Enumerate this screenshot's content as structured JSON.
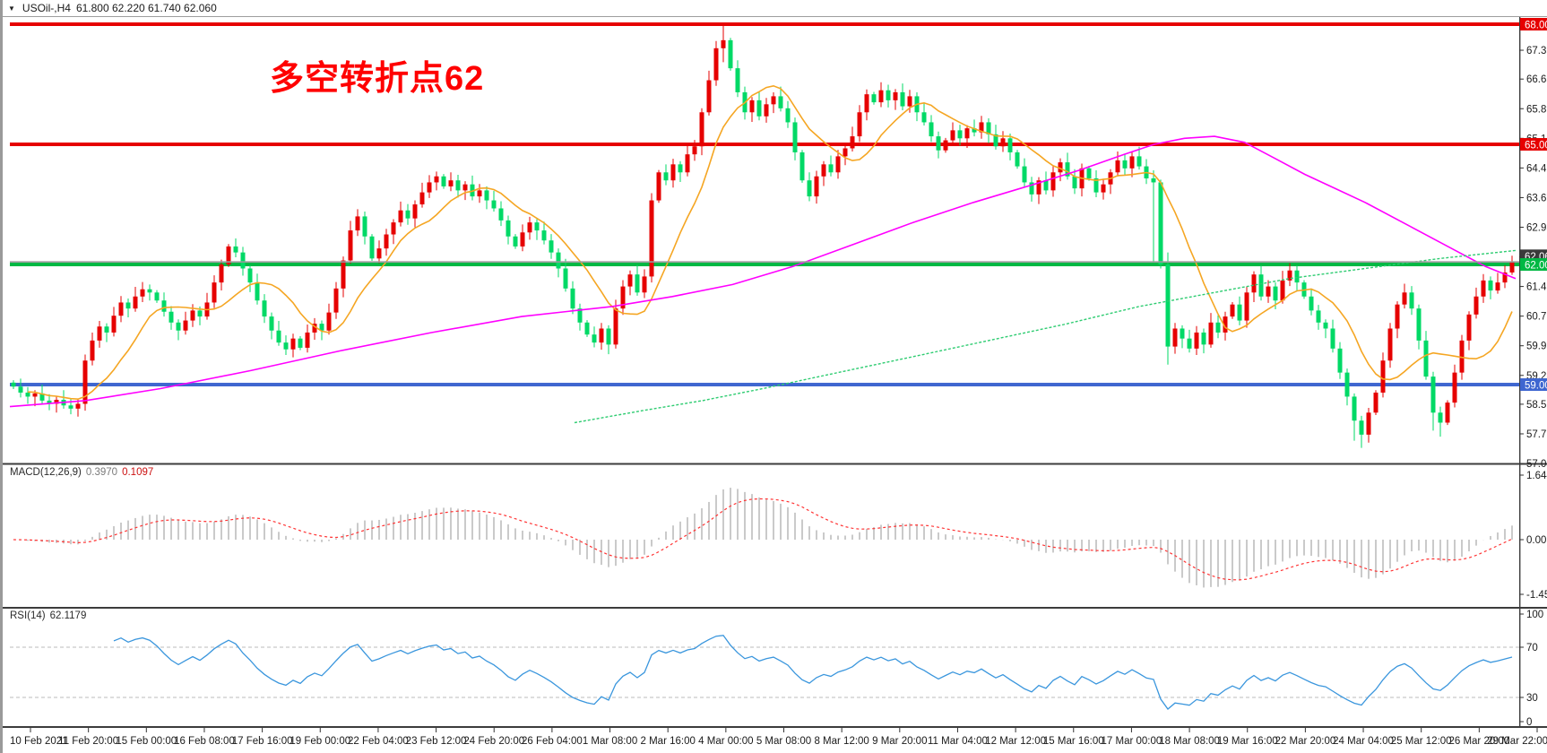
{
  "window": {
    "dropdown_icon": "triangle-down-icon",
    "symbol_title": "USOil-,H4",
    "ohlc_text": "61.800 62.220 61.740 62.060"
  },
  "annotation": {
    "text": "多空转折点62",
    "color": "#ff0000"
  },
  "macd_panel": {
    "name": "MACD(12,26,9)",
    "value_main": "0.3970",
    "value_signal": "0.1097"
  },
  "rsi_panel": {
    "name": "RSI(14)",
    "value": "62.1179"
  },
  "colors": {
    "candle_up": "#e60000",
    "candle_down": "#00d966",
    "hline_red": "#e60000",
    "hline_green": "#00b843",
    "hline_blue": "#3e66d0",
    "current_price_line": "#9a9a9a",
    "current_price_box": "#3a3a3a",
    "ma_fast": "#f5a623",
    "ma_mid": "#ff00ff",
    "ma_slow": "#2ecc71",
    "macd_hist": "#bdbdbd",
    "macd_signal": "#ff3333",
    "rsi_line": "#3a96dd",
    "rsi_levels": "#bbbbbb",
    "axis_text": "#1a1a1a",
    "panel_border": "#3c3c3c"
  },
  "chart_data": {
    "type": "candlestick",
    "symbol": "USOil",
    "timeframe": "H4",
    "title": "USOil-,H4 61.800 62.220 61.740 62.060",
    "current_bar_ohlc": {
      "open": 61.8,
      "high": 62.22,
      "low": 61.74,
      "close": 62.06
    },
    "price_axis": {
      "min": 57.03,
      "max": 68.16,
      "tick_labels": [
        "67.350",
        "66.630",
        "65.890",
        "65.150",
        "64.410",
        "63.670",
        "62.930",
        "62.190",
        "61.450",
        "60.710",
        "59.970",
        "59.230",
        "58.510",
        "57.770",
        "57.030"
      ]
    },
    "horizontal_lines": [
      {
        "price": 68.0,
        "label": "68.000",
        "color": "#e60000"
      },
      {
        "price": 65.0,
        "label": "65.000",
        "color": "#e60000"
      },
      {
        "price": 62.0,
        "label": "62.000",
        "color": "#00b843"
      },
      {
        "price": 59.0,
        "label": "59.000",
        "color": "#3e66d0"
      }
    ],
    "current_price": {
      "value": 62.06,
      "label": "62.060"
    },
    "closes": [
      58.95,
      58.8,
      58.7,
      58.78,
      58.6,
      58.52,
      58.62,
      58.48,
      58.4,
      58.52,
      59.6,
      60.1,
      60.45,
      60.3,
      60.72,
      61.05,
      60.9,
      61.2,
      61.38,
      61.3,
      61.1,
      60.82,
      60.55,
      60.35,
      60.6,
      60.85,
      60.7,
      61.05,
      61.55,
      62.0,
      62.45,
      62.3,
      61.9,
      61.55,
      61.1,
      60.7,
      60.35,
      60.05,
      59.88,
      60.15,
      59.92,
      60.3,
      60.52,
      60.35,
      60.8,
      61.4,
      62.1,
      62.85,
      63.2,
      62.7,
      62.15,
      62.4,
      62.75,
      63.05,
      63.35,
      63.15,
      63.5,
      63.8,
      64.05,
      64.2,
      63.95,
      64.1,
      63.85,
      64.0,
      63.7,
      63.85,
      63.6,
      63.4,
      63.1,
      62.7,
      62.45,
      62.8,
      63.05,
      62.85,
      62.6,
      62.3,
      61.9,
      61.4,
      60.9,
      60.55,
      60.25,
      60.05,
      60.4,
      60.0,
      60.9,
      61.45,
      61.75,
      61.3,
      61.7,
      63.6,
      64.3,
      64.1,
      64.5,
      64.3,
      64.75,
      64.95,
      65.8,
      66.6,
      67.4,
      67.6,
      66.9,
      66.3,
      65.8,
      66.1,
      65.7,
      66.0,
      66.2,
      65.9,
      65.55,
      64.8,
      64.1,
      63.7,
      64.2,
      64.5,
      64.3,
      64.7,
      64.9,
      65.2,
      65.8,
      66.25,
      66.05,
      66.35,
      66.1,
      66.3,
      65.95,
      66.2,
      65.8,
      65.55,
      65.2,
      64.85,
      65.1,
      65.35,
      65.15,
      65.4,
      65.3,
      65.55,
      65.25,
      64.95,
      65.15,
      64.8,
      64.45,
      64.05,
      63.75,
      64.1,
      63.85,
      64.3,
      64.55,
      64.2,
      63.9,
      64.4,
      64.15,
      63.8,
      64.0,
      64.3,
      64.6,
      64.4,
      64.7,
      64.45,
      64.15,
      64.05,
      62.0,
      59.95,
      60.4,
      60.15,
      59.9,
      60.3,
      60.0,
      60.55,
      60.3,
      60.7,
      61.0,
      60.6,
      61.3,
      61.75,
      61.2,
      61.45,
      61.1,
      61.6,
      61.85,
      61.55,
      61.2,
      60.85,
      60.55,
      60.4,
      59.9,
      59.3,
      58.7,
      58.1,
      57.75,
      58.3,
      58.8,
      59.6,
      60.4,
      61.0,
      61.3,
      60.9,
      60.1,
      59.2,
      58.3,
      58.05,
      58.55,
      59.3,
      60.1,
      60.75,
      61.2,
      61.6,
      61.35,
      61.55,
      61.8,
      62.06
    ],
    "ohlc_overrides": {
      "10": [
        58.52,
        59.75,
        58.35,
        59.6
      ],
      "89": [
        61.7,
        63.78,
        61.55,
        63.6
      ],
      "99": [
        67.4,
        67.98,
        67.05,
        67.6
      ],
      "159": [
        64.15,
        64.35,
        62.05,
        64.05
      ],
      "160": [
        64.05,
        64.12,
        61.9,
        62.0
      ],
      "161": [
        62.0,
        62.3,
        59.5,
        59.95
      ],
      "187": [
        58.7,
        58.78,
        57.6,
        58.1
      ],
      "188": [
        58.1,
        58.22,
        57.42,
        57.75
      ],
      "198": [
        59.2,
        59.32,
        57.85,
        58.3
      ],
      "199": [
        58.3,
        58.45,
        57.7,
        58.05
      ],
      "209": [
        61.8,
        62.22,
        61.74,
        62.06
      ]
    },
    "moving_averages": {
      "fast_sma_period": 10,
      "mid_anchors": [
        [
          0,
          58.45
        ],
        [
          0.05,
          58.6
        ],
        [
          0.1,
          58.9
        ],
        [
          0.16,
          59.35
        ],
        [
          0.22,
          59.85
        ],
        [
          0.28,
          60.3
        ],
        [
          0.34,
          60.7
        ],
        [
          0.4,
          60.95
        ],
        [
          0.44,
          61.2
        ],
        [
          0.48,
          61.5
        ],
        [
          0.52,
          61.95
        ],
        [
          0.56,
          62.5
        ],
        [
          0.6,
          63.05
        ],
        [
          0.64,
          63.55
        ],
        [
          0.68,
          64.0
        ],
        [
          0.71,
          64.35
        ],
        [
          0.74,
          64.75
        ],
        [
          0.76,
          65.0
        ],
        [
          0.78,
          65.15
        ],
        [
          0.8,
          65.2
        ],
        [
          0.82,
          65.05
        ],
        [
          0.84,
          64.65
        ],
        [
          0.86,
          64.25
        ],
        [
          0.88,
          63.9
        ],
        [
          0.9,
          63.55
        ],
        [
          0.93,
          62.95
        ],
        [
          0.96,
          62.35
        ],
        [
          0.98,
          61.95
        ],
        [
          1,
          61.65
        ]
      ],
      "slow_anchors": [
        [
          0.375,
          58.05
        ],
        [
          0.42,
          58.35
        ],
        [
          0.46,
          58.6
        ],
        [
          0.5,
          58.9
        ],
        [
          0.55,
          59.3
        ],
        [
          0.6,
          59.7
        ],
        [
          0.65,
          60.1
        ],
        [
          0.7,
          60.5
        ],
        [
          0.75,
          60.95
        ],
        [
          0.8,
          61.3
        ],
        [
          0.85,
          61.65
        ],
        [
          0.9,
          61.9
        ],
        [
          0.95,
          62.15
        ],
        [
          1,
          62.35
        ]
      ]
    },
    "macd": {
      "fast": 12,
      "slow": 26,
      "signal": 9,
      "display_main": 0.397,
      "display_signal": 0.1097,
      "axis_ticks": [
        "1.6446",
        "0.00",
        "-1.4594"
      ],
      "axis_max": 1.6446,
      "axis_min": -1.4594
    },
    "rsi": {
      "period": 14,
      "display": 62.1179,
      "levels": [
        70,
        30
      ],
      "axis_ticks": [
        "100",
        "70",
        "30",
        "0"
      ]
    },
    "x_labels": [
      "10 Feb 2021",
      "11 Feb 20:00",
      "15 Feb 00:00",
      "16 Feb 08:00",
      "17 Feb 16:00",
      "19 Feb 00:00",
      "22 Feb 04:00",
      "23 Feb 12:00",
      "24 Feb 20:00",
      "26 Feb 04:00",
      "1 Mar 08:00",
      "2 Mar 16:00",
      "4 Mar 00:00",
      "5 Mar 08:00",
      "8 Mar 12:00",
      "9 Mar 20:00",
      "11 Mar 04:00",
      "12 Mar 12:00",
      "15 Mar 16:00",
      "17 Mar 00:00",
      "18 Mar 08:00",
      "19 Mar 16:00",
      "22 Mar 20:00",
      "24 Mar 04:00",
      "25 Mar 12:00",
      "26 Mar 20:00",
      "29 Mar 22:00"
    ]
  }
}
